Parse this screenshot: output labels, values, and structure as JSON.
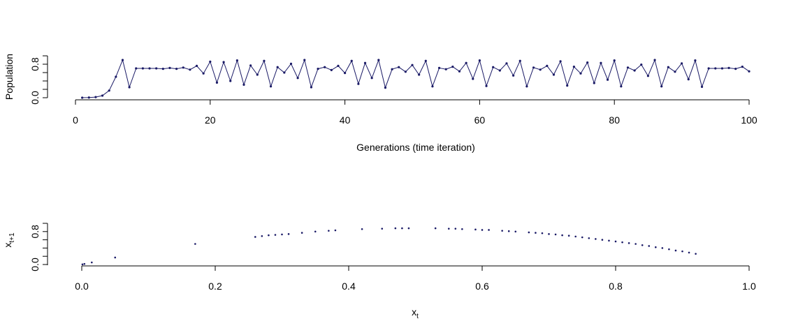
{
  "chart_data": [
    {
      "type": "line",
      "xlabel": "Generations (time iteration)",
      "ylabel": "Population",
      "xlim": [
        0,
        100
      ],
      "ylim": [
        0.0,
        1.0
      ],
      "x_ticks": [
        "0",
        "20",
        "40",
        "60",
        "80",
        "100"
      ],
      "y_ticks": [
        "0.0",
        "0.8"
      ],
      "grid": false,
      "markers": true,
      "color": "#1a1a66",
      "series": [
        {
          "x": [
            1,
            2,
            3,
            4,
            5,
            6,
            7,
            8,
            9,
            10,
            11,
            12,
            13,
            14,
            15,
            16,
            17,
            18,
            19,
            20,
            21,
            22,
            23,
            24,
            25,
            26,
            27,
            28,
            29,
            30,
            31,
            32,
            33,
            34,
            35,
            36,
            37,
            38,
            39,
            40,
            41,
            42,
            43,
            44,
            45,
            46,
            47,
            48,
            49,
            50,
            51,
            52,
            53,
            54,
            55,
            56,
            57,
            58,
            59,
            60,
            61,
            62,
            63,
            64,
            65,
            66,
            67,
            68,
            69,
            70,
            71,
            72,
            73,
            74,
            75,
            76,
            77,
            78,
            79,
            80,
            81,
            82,
            83,
            84,
            85,
            86,
            87,
            88,
            89,
            90,
            91,
            92,
            93,
            94,
            95,
            96,
            97,
            98,
            99,
            100
          ],
          "y": [
            0.001,
            0.004,
            0.015,
            0.05,
            0.17,
            0.5,
            0.9,
            0.25,
            0.7,
            0.7,
            0.7,
            0.7,
            0.69,
            0.71,
            0.69,
            0.72,
            0.67,
            0.76,
            0.58,
            0.86,
            0.36,
            0.85,
            0.4,
            0.89,
            0.31,
            0.77,
            0.55,
            0.88,
            0.27,
            0.73,
            0.6,
            0.81,
            0.47,
            0.9,
            0.25,
            0.69,
            0.73,
            0.66,
            0.76,
            0.59,
            0.88,
            0.33,
            0.83,
            0.47,
            0.9,
            0.24,
            0.68,
            0.73,
            0.62,
            0.78,
            0.55,
            0.88,
            0.27,
            0.71,
            0.68,
            0.74,
            0.63,
            0.83,
            0.45,
            0.89,
            0.28,
            0.73,
            0.65,
            0.82,
            0.53,
            0.88,
            0.27,
            0.72,
            0.67,
            0.76,
            0.55,
            0.87,
            0.29,
            0.74,
            0.58,
            0.84,
            0.35,
            0.83,
            0.43,
            0.89,
            0.27,
            0.72,
            0.65,
            0.79,
            0.52,
            0.9,
            0.27,
            0.73,
            0.62,
            0.82,
            0.44,
            0.89,
            0.26,
            0.7,
            0.7,
            0.7,
            0.71,
            0.69,
            0.74,
            0.63
          ]
        }
      ]
    },
    {
      "type": "scatter",
      "xlabel": "x_t",
      "ylabel": "x_t+1",
      "xlim": [
        0.0,
        1.0
      ],
      "ylim": [
        0.0,
        1.0
      ],
      "x_ticks": [
        "0.0",
        "0.2",
        "0.4",
        "0.6",
        "0.8",
        "1.0"
      ],
      "y_ticks": [
        "0.0",
        "0.8"
      ],
      "grid": false,
      "color": "#1a1a66",
      "series": [
        {
          "x": [
            0.001,
            0.004,
            0.015,
            0.05,
            0.17,
            0.26,
            0.27,
            0.28,
            0.29,
            0.3,
            0.31,
            0.33,
            0.35,
            0.37,
            0.38,
            0.42,
            0.45,
            0.47,
            0.48,
            0.49,
            0.53,
            0.55,
            0.56,
            0.57,
            0.59,
            0.6,
            0.61,
            0.63,
            0.64,
            0.65,
            0.67,
            0.68,
            0.69,
            0.7,
            0.71,
            0.72,
            0.73,
            0.74,
            0.75,
            0.76,
            0.77,
            0.78,
            0.79,
            0.8,
            0.81,
            0.82,
            0.83,
            0.84,
            0.85,
            0.86,
            0.87,
            0.88,
            0.89,
            0.9,
            0.91,
            0.92
          ],
          "y": [
            0.004,
            0.015,
            0.05,
            0.17,
            0.5,
            0.67,
            0.69,
            0.71,
            0.72,
            0.73,
            0.74,
            0.77,
            0.8,
            0.82,
            0.83,
            0.86,
            0.87,
            0.88,
            0.88,
            0.88,
            0.88,
            0.87,
            0.87,
            0.86,
            0.85,
            0.84,
            0.84,
            0.82,
            0.81,
            0.8,
            0.78,
            0.77,
            0.76,
            0.74,
            0.73,
            0.71,
            0.7,
            0.68,
            0.66,
            0.64,
            0.62,
            0.6,
            0.58,
            0.56,
            0.54,
            0.52,
            0.5,
            0.47,
            0.45,
            0.42,
            0.4,
            0.37,
            0.34,
            0.32,
            0.29,
            0.26
          ]
        }
      ]
    }
  ]
}
